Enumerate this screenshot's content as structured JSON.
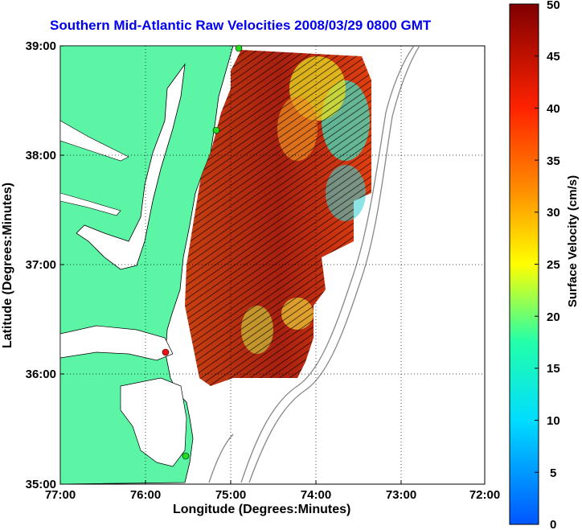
{
  "title": "Southern Mid-Atlantic Raw Velocities 2008/03/29 0800 GMT",
  "x_axis": {
    "label": "Longitude (Degrees:Minutes)",
    "ticks": [
      "77:00",
      "76:00",
      "75:00",
      "74:00",
      "73:00",
      "72:00"
    ]
  },
  "y_axis": {
    "label": "Latitude (Degrees:Minutes)",
    "ticks": [
      "39:00",
      "38:00",
      "37:00",
      "36:00",
      "35:00"
    ]
  },
  "colorbar": {
    "label": "Surface Velocity (cm/s)",
    "ticks": [
      "50",
      "45",
      "40",
      "35",
      "30",
      "25",
      "20",
      "15",
      "10",
      "5",
      "0"
    ],
    "min": 0,
    "max": 50
  },
  "colors": {
    "land": "#5cf5a6",
    "ocean": "#ffffff",
    "title": "#0000ee",
    "station": "#22dd22",
    "station_red": "#ee1111"
  },
  "grid": "dotted"
}
